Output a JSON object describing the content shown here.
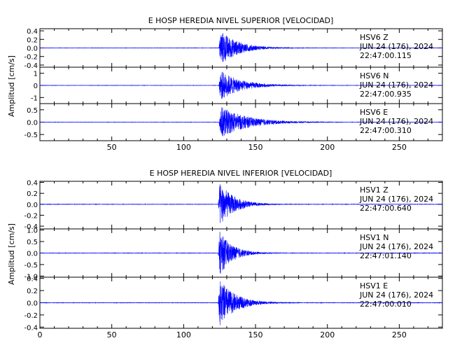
{
  "chart_data": [
    {
      "type": "line",
      "title": "E HOSP HEREDIA NIVEL SUPERIOR [VELOCIDAD]",
      "ylabel": "Amplitud [cm/s]",
      "xlabel": "",
      "xlim": [
        0,
        280
      ],
      "xticks": [
        50,
        100,
        150,
        200,
        250
      ],
      "xticklabels": [
        "50",
        "100",
        "150",
        "200",
        "250"
      ],
      "show_xticklabels": true,
      "line_color": "#0000ff",
      "onset": 124.5,
      "series": [
        {
          "station": "HSV6",
          "component": "Z",
          "date": "JUN 24 (176), 2024",
          "time": "22:47:00.115",
          "ylim": [
            -0.45,
            0.45
          ],
          "yticks": [
            0.4,
            0.2,
            0.0,
            -0.2,
            -0.4
          ],
          "yticklabels": [
            "0.4",
            "0.2",
            "0.0",
            "-0.2",
            "-0.4"
          ],
          "peak": 0.42,
          "decay": 12
        },
        {
          "station": "HSV6",
          "component": "N",
          "date": "JUN 24 (176), 2024",
          "time": "22:47:00.935",
          "ylim": [
            -1.5,
            1.5
          ],
          "yticks": [
            1,
            0,
            -1
          ],
          "yticklabels": [
            "1",
            "0",
            "-1"
          ],
          "peak": 1.25,
          "decay": 14
        },
        {
          "station": "HSV6",
          "component": "E",
          "date": "JUN 24 (176), 2024",
          "time": "22:47:00.310",
          "ylim": [
            -0.75,
            0.75
          ],
          "yticks": [
            0.5,
            0.0,
            -0.5
          ],
          "yticklabels": [
            "0.5",
            "0.0",
            "-0.5"
          ],
          "peak": 0.65,
          "decay": 18
        }
      ]
    },
    {
      "type": "line",
      "title": "E HOSP HEREDIA NIVEL INFERIOR [VELOCIDAD]",
      "ylabel": "Amplitud [cm/s]",
      "xlabel": "",
      "xlim": [
        0,
        280
      ],
      "xticks": [
        0,
        50,
        100,
        150,
        200,
        250
      ],
      "xticklabels": [
        "0",
        "50",
        "100",
        "150",
        "200",
        "250"
      ],
      "show_xticklabels": true,
      "line_color": "#0000ff",
      "onset": 124,
      "series": [
        {
          "station": "HSV1",
          "component": "Z",
          "date": "JUN 24 (176), 2024",
          "time": "22:47:00.640",
          "ylim": [
            -0.45,
            0.42
          ],
          "yticks": [
            0.4,
            0.2,
            0.0,
            -0.2,
            -0.4
          ],
          "yticklabels": [
            "0.4",
            "0.2",
            "0.0",
            "-0.2",
            "-0.4"
          ],
          "peak": 0.4,
          "decay": 10
        },
        {
          "station": "HSV1",
          "component": "N",
          "date": "JUN 24 (176), 2024",
          "time": "22:47:01.140",
          "ylim": [
            -1.05,
            1.05
          ],
          "yticks": [
            1.0,
            0.5,
            0.0,
            -0.5,
            -1.0
          ],
          "yticklabels": [
            "1.0",
            "0.5",
            "0.0",
            "-0.5",
            "-1.0"
          ],
          "peak": 0.95,
          "decay": 9
        },
        {
          "station": "HSV1",
          "component": "E",
          "date": "JUN 24 (176), 2024",
          "time": "22:47:00.010",
          "ylim": [
            -0.42,
            0.42
          ],
          "yticks": [
            0.4,
            0.2,
            0.0,
            -0.2,
            -0.4
          ],
          "yticklabels": [
            "0.4",
            "0.2",
            "0.0",
            "-0.2",
            "-0.4"
          ],
          "peak": 0.38,
          "decay": 11
        }
      ]
    }
  ]
}
